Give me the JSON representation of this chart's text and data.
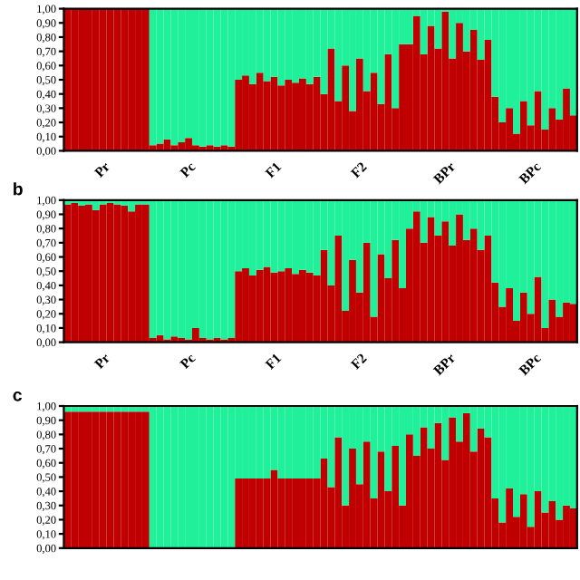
{
  "chart_data": [
    {
      "type": "bar",
      "stacked": true,
      "grid": false,
      "legend": false,
      "ylim": [
        0,
        1
      ],
      "yticks": [
        {
          "value": 0,
          "label": "0,00"
        },
        {
          "value": 0.1,
          "label": "0,10"
        },
        {
          "value": 0.2,
          "label": "0,20"
        },
        {
          "value": 0.3,
          "label": "0,30"
        },
        {
          "value": 0.4,
          "label": "0,40"
        },
        {
          "value": 0.5,
          "label": "0,50"
        },
        {
          "value": 0.6,
          "label": "0,60"
        },
        {
          "value": 0.7,
          "label": "0,70"
        },
        {
          "value": 0.8,
          "label": "0,80"
        },
        {
          "value": 0.9,
          "label": "0,90"
        },
        {
          "value": 1,
          "label": "1,00"
        }
      ],
      "categories": [
        null,
        null,
        null,
        null,
        null,
        "Pr",
        null,
        null,
        null,
        null,
        null,
        null,
        null,
        null,
        null,
        null,
        null,
        "Pc",
        null,
        null,
        null,
        null,
        null,
        null,
        null,
        null,
        null,
        null,
        null,
        "F1",
        null,
        null,
        null,
        null,
        null,
        null,
        null,
        null,
        null,
        null,
        null,
        "F2",
        null,
        null,
        null,
        null,
        null,
        null,
        null,
        null,
        null,
        null,
        null,
        "BPr",
        null,
        null,
        null,
        null,
        null,
        null,
        null,
        null,
        null,
        null,
        null,
        "BPc",
        null,
        null,
        null,
        null,
        null,
        null
      ],
      "series": [
        {
          "color": "#c00000",
          "values": [
            1,
            1,
            1,
            1,
            1,
            1,
            1,
            1,
            1,
            1,
            1,
            1,
            0.04,
            0.05,
            0.08,
            0.04,
            0.06,
            0.09,
            0.04,
            0.03,
            0.04,
            0.03,
            0.04,
            0.03,
            0.5,
            0.53,
            0.47,
            0.55,
            0.49,
            0.52,
            0.46,
            0.5,
            0.48,
            0.51,
            0.47,
            0.52,
            0.4,
            0.72,
            0.35,
            0.6,
            0.28,
            0.65,
            0.42,
            0.55,
            0.33,
            0.68,
            0.3,
            0.75,
            0.75,
            0.95,
            0.68,
            0.88,
            0.72,
            0.98,
            0.65,
            0.9,
            0.7,
            0.85,
            0.64,
            0.78,
            0.38,
            0.2,
            0.3,
            0.12,
            0.35,
            0.18,
            0.42,
            0.15,
            0.3,
            0.22,
            0.44,
            0.25
          ]
        },
        {
          "color": "#20f09a",
          "values": [
            0,
            0,
            0,
            0,
            0,
            0,
            0,
            0,
            0,
            0,
            0,
            0,
            0.96,
            0.95,
            0.92,
            0.96,
            0.94,
            0.91,
            0.96,
            0.97,
            0.96,
            0.97,
            0.96,
            0.97,
            0.5,
            0.47,
            0.53,
            0.45,
            0.51,
            0.48,
            0.54,
            0.5,
            0.52,
            0.49,
            0.53,
            0.48,
            0.6,
            0.28,
            0.65,
            0.4,
            0.72,
            0.35,
            0.58,
            0.45,
            0.67,
            0.32,
            0.7,
            0.25,
            0.25,
            0.05,
            0.32,
            0.12,
            0.28,
            0.02,
            0.35,
            0.1,
            0.3,
            0.15,
            0.36,
            0.22,
            0.62,
            0.8,
            0.7,
            0.88,
            0.65,
            0.82,
            0.58,
            0.85,
            0.7,
            0.78,
            0.56,
            0.75
          ]
        }
      ]
    },
    {
      "type": "bar",
      "stacked": true,
      "grid": false,
      "legend": false,
      "title": "b",
      "ylim": [
        0,
        1
      ],
      "yticks": [
        {
          "value": 0,
          "label": "0,00"
        },
        {
          "value": 0.1,
          "label": "0,10"
        },
        {
          "value": 0.2,
          "label": "0,20"
        },
        {
          "value": 0.3,
          "label": "0,30"
        },
        {
          "value": 0.4,
          "label": "0,40"
        },
        {
          "value": 0.5,
          "label": "0,50"
        },
        {
          "value": 0.6,
          "label": "0,60"
        },
        {
          "value": 0.7,
          "label": "0,70"
        },
        {
          "value": 0.8,
          "label": "0,80"
        },
        {
          "value": 0.9,
          "label": "0,90"
        },
        {
          "value": 1,
          "label": "1,00"
        }
      ],
      "categories": [
        null,
        null,
        null,
        null,
        null,
        "Pr",
        null,
        null,
        null,
        null,
        null,
        null,
        null,
        null,
        null,
        null,
        null,
        "Pc",
        null,
        null,
        null,
        null,
        null,
        null,
        null,
        null,
        null,
        null,
        null,
        "F1",
        null,
        null,
        null,
        null,
        null,
        null,
        null,
        null,
        null,
        null,
        null,
        "F2",
        null,
        null,
        null,
        null,
        null,
        null,
        null,
        null,
        null,
        null,
        null,
        "BPr",
        null,
        null,
        null,
        null,
        null,
        null,
        null,
        null,
        null,
        null,
        null,
        "BPc",
        null,
        null,
        null,
        null,
        null,
        null
      ],
      "series": [
        {
          "color": "#c00000",
          "values": [
            0.97,
            0.98,
            0.96,
            0.97,
            0.93,
            0.97,
            0.98,
            0.97,
            0.96,
            0.92,
            0.97,
            0.97,
            0.03,
            0.05,
            0.02,
            0.04,
            0.03,
            0.02,
            0.1,
            0.03,
            0.02,
            0.03,
            0.02,
            0.03,
            0.5,
            0.52,
            0.47,
            0.51,
            0.53,
            0.49,
            0.5,
            0.52,
            0.48,
            0.51,
            0.49,
            0.47,
            0.65,
            0.4,
            0.75,
            0.22,
            0.58,
            0.35,
            0.7,
            0.18,
            0.62,
            0.45,
            0.72,
            0.38,
            0.8,
            0.92,
            0.7,
            0.88,
            0.75,
            0.85,
            0.68,
            0.9,
            0.72,
            0.8,
            0.65,
            0.75,
            0.42,
            0.25,
            0.38,
            0.15,
            0.35,
            0.2,
            0.46,
            0.1,
            0.3,
            0.18,
            0.28,
            0.27
          ]
        },
        {
          "color": "#20f09a",
          "values": [
            0.03,
            0.02,
            0.04,
            0.03,
            0.07,
            0.03,
            0.02,
            0.03,
            0.04,
            0.08,
            0.03,
            0.03,
            0.97,
            0.95,
            0.98,
            0.96,
            0.97,
            0.98,
            0.9,
            0.97,
            0.98,
            0.97,
            0.98,
            0.97,
            0.5,
            0.48,
            0.53,
            0.49,
            0.47,
            0.51,
            0.5,
            0.48,
            0.52,
            0.49,
            0.51,
            0.53,
            0.35,
            0.6,
            0.25,
            0.78,
            0.42,
            0.65,
            0.3,
            0.82,
            0.38,
            0.55,
            0.28,
            0.62,
            0.2,
            0.08,
            0.3,
            0.12,
            0.25,
            0.15,
            0.32,
            0.1,
            0.28,
            0.2,
            0.35,
            0.25,
            0.58,
            0.75,
            0.62,
            0.85,
            0.65,
            0.8,
            0.54,
            0.9,
            0.7,
            0.82,
            0.72,
            0.73
          ]
        }
      ]
    },
    {
      "type": "bar",
      "stacked": true,
      "grid": false,
      "legend": false,
      "title": "c",
      "tick_labels": "y",
      "ylim": [
        0,
        1
      ],
      "yticks": [
        {
          "value": 0,
          "label": "0,00"
        },
        {
          "value": 0.1,
          "label": "0,10"
        },
        {
          "value": 0.2,
          "label": "0,20"
        },
        {
          "value": 0.3,
          "label": "0,30"
        },
        {
          "value": 0.4,
          "label": "0,40"
        },
        {
          "value": 0.5,
          "label": "0,50"
        },
        {
          "value": 0.6,
          "label": "0,60"
        },
        {
          "value": 0.7,
          "label": "0,70"
        },
        {
          "value": 0.8,
          "label": "0,80"
        },
        {
          "value": 0.9,
          "label": "0,90"
        },
        {
          "value": 1,
          "label": "1,00"
        }
      ],
      "categories": [
        null,
        null,
        null,
        null,
        null,
        null,
        null,
        null,
        null,
        null,
        null,
        null,
        null,
        null,
        null,
        null,
        null,
        null,
        null,
        null,
        null,
        null,
        null,
        null,
        null,
        null,
        null,
        null,
        null,
        null,
        null,
        null,
        null,
        null,
        null,
        null,
        null,
        null,
        null,
        null,
        null,
        null,
        null,
        null,
        null,
        null,
        null,
        null,
        null,
        null,
        null,
        null,
        null,
        null,
        null,
        null,
        null,
        null,
        null,
        null,
        null,
        null,
        null,
        null,
        null,
        null,
        null,
        null,
        null,
        null,
        null,
        null
      ],
      "series": [
        {
          "color": "#c00000",
          "values": [
            0.96,
            0.96,
            0.96,
            0.96,
            0.96,
            0.96,
            0.96,
            0.96,
            0.96,
            0.96,
            0.96,
            0.96,
            0,
            0,
            0,
            0,
            0,
            0,
            0,
            0,
            0,
            0,
            0,
            0,
            0.49,
            0.49,
            0.49,
            0.49,
            0.49,
            0.55,
            0.49,
            0.49,
            0.49,
            0.49,
            0.49,
            0.49,
            0.63,
            0.43,
            0.78,
            0.3,
            0.7,
            0.45,
            0.75,
            0.35,
            0.68,
            0.4,
            0.72,
            0.3,
            0.8,
            0.65,
            0.85,
            0.7,
            0.88,
            0.62,
            0.92,
            0.75,
            0.95,
            0.68,
            0.84,
            0.78,
            0.35,
            0.18,
            0.42,
            0.22,
            0.38,
            0.15,
            0.4,
            0.25,
            0.33,
            0.2,
            0.3,
            0.28
          ]
        },
        {
          "color": "#20f09a",
          "values": [
            0.04,
            0.04,
            0.04,
            0.04,
            0.04,
            0.04,
            0.04,
            0.04,
            0.04,
            0.04,
            0.04,
            0.04,
            1,
            1,
            1,
            1,
            1,
            1,
            1,
            1,
            1,
            1,
            1,
            1,
            0.51,
            0.51,
            0.51,
            0.51,
            0.51,
            0.45,
            0.51,
            0.51,
            0.51,
            0.51,
            0.51,
            0.51,
            0.37,
            0.57,
            0.22,
            0.7,
            0.3,
            0.55,
            0.25,
            0.65,
            0.32,
            0.6,
            0.28,
            0.7,
            0.2,
            0.35,
            0.15,
            0.3,
            0.12,
            0.38,
            0.08,
            0.25,
            0.05,
            0.32,
            0.16,
            0.22,
            0.65,
            0.82,
            0.58,
            0.78,
            0.62,
            0.85,
            0.6,
            0.75,
            0.67,
            0.8,
            0.7,
            0.72
          ]
        }
      ]
    }
  ]
}
